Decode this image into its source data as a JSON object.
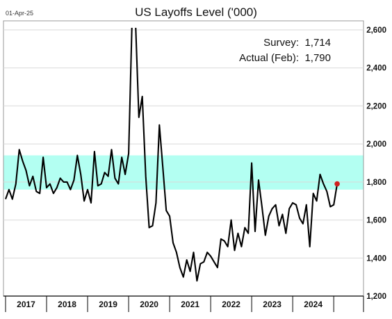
{
  "header": {
    "date_stamp": "01-Apr-25",
    "title": "US Layoffs Level ('000)"
  },
  "annotations": {
    "survey_label": "Survey:",
    "survey_value": "1,714",
    "actual_label": "Actual (Feb):",
    "actual_value": "1,790"
  },
  "colors": {
    "line": "#000000",
    "band": "#b3fff2",
    "latest_point": "#d0201f",
    "grid": "#d9d9d9"
  },
  "chart_data": {
    "type": "line",
    "title": "US Layoffs Level ('000)",
    "x_tick_labels": [
      "2017",
      "2018",
      "2019",
      "2020",
      "2021",
      "2022",
      "2023",
      "2024"
    ],
    "y_tick_labels": [
      "1,200",
      "1,400",
      "1,600",
      "1,800",
      "2,000",
      "2,200",
      "2,400",
      "2,600"
    ],
    "ylim": [
      1200,
      2650
    ],
    "xlim": [
      "2017-01",
      "2025-03"
    ],
    "grid": "horizontal",
    "shaded_band": [
      1760,
      1940
    ],
    "series": [
      {
        "dates": [
          "2017-01",
          "2017-02",
          "2017-03",
          "2017-04",
          "2017-05",
          "2017-06",
          "2017-07",
          "2017-08",
          "2017-09",
          "2017-10",
          "2017-11",
          "2017-12",
          "2018-01",
          "2018-02",
          "2018-03",
          "2018-04",
          "2018-05",
          "2018-06",
          "2018-07",
          "2018-08",
          "2018-09",
          "2018-10",
          "2018-11",
          "2018-12",
          "2019-01",
          "2019-02",
          "2019-03",
          "2019-04",
          "2019-05",
          "2019-06",
          "2019-07",
          "2019-08",
          "2019-09",
          "2019-10",
          "2019-11",
          "2019-12",
          "2020-01",
          "2020-02",
          "2020-03",
          "2020-04",
          "2020-05",
          "2020-06",
          "2020-07",
          "2020-08",
          "2020-09",
          "2020-10",
          "2020-11",
          "2020-12",
          "2021-01",
          "2021-02",
          "2021-03",
          "2021-04",
          "2021-05",
          "2021-06",
          "2021-07",
          "2021-08",
          "2021-09",
          "2021-10",
          "2021-11",
          "2021-12",
          "2022-01",
          "2022-02",
          "2022-03",
          "2022-04",
          "2022-05",
          "2022-06",
          "2022-07",
          "2022-08",
          "2022-09",
          "2022-10",
          "2022-11",
          "2022-12",
          "2023-01",
          "2023-02",
          "2023-03",
          "2023-04",
          "2023-05",
          "2023-06",
          "2023-07",
          "2023-08",
          "2023-09",
          "2023-10",
          "2023-11",
          "2023-12",
          "2024-01",
          "2024-02",
          "2024-03",
          "2024-04",
          "2024-05",
          "2024-06",
          "2024-07",
          "2024-08",
          "2024-09",
          "2024-10",
          "2024-11",
          "2024-12",
          "2025-01",
          "2025-02"
        ],
        "values": [
          1710,
          1760,
          1710,
          1790,
          1970,
          1910,
          1860,
          1780,
          1830,
          1750,
          1740,
          1930,
          1770,
          1790,
          1740,
          1770,
          1820,
          1800,
          1800,
          1760,
          1810,
          1940,
          1840,
          1700,
          1760,
          1690,
          1960,
          1780,
          1790,
          1850,
          1830,
          1970,
          1820,
          1790,
          1930,
          1840,
          1950,
          2650,
          2650,
          2140,
          2250,
          1830,
          1560,
          1570,
          1690,
          2100,
          1880,
          1650,
          1620,
          1480,
          1430,
          1350,
          1300,
          1390,
          1330,
          1430,
          1280,
          1370,
          1380,
          1430,
          1410,
          1380,
          1350,
          1500,
          1490,
          1460,
          1600,
          1440,
          1530,
          1460,
          1560,
          1530,
          1900,
          1540,
          1810,
          1670,
          1520,
          1620,
          1660,
          1680,
          1570,
          1630,
          1530,
          1660,
          1690,
          1680,
          1610,
          1580,
          1680,
          1460,
          1740,
          1700,
          1840,
          1790,
          1750,
          1670,
          1680,
          1790
        ]
      }
    ],
    "latest_point": {
      "date": "2025-02",
      "value": 1790
    }
  }
}
